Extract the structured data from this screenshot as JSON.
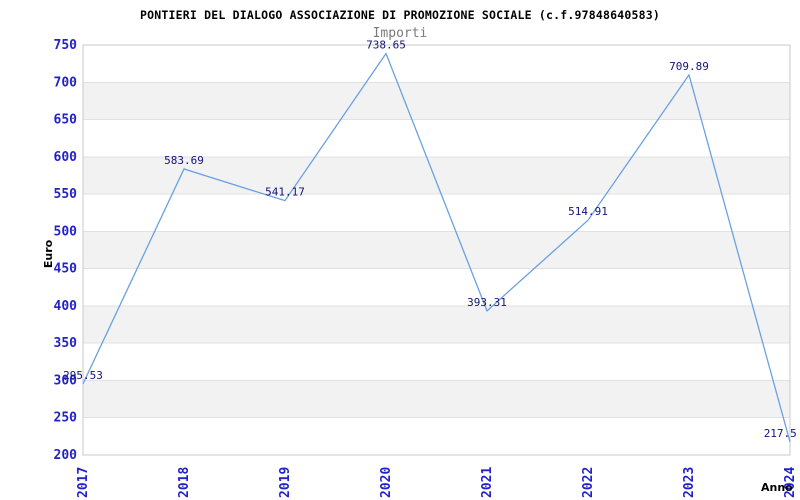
{
  "chart_data": {
    "type": "line",
    "title": "PONTIERI DEL DIALOGO ASSOCIAZIONE DI PROMOZIONE SOCIALE (c.f.97848640583)",
    "subtitle": "Importi",
    "xlabel": "Anno",
    "ylabel": "Euro",
    "categories": [
      "2017",
      "2018",
      "2019",
      "2020",
      "2021",
      "2022",
      "2023",
      "2024"
    ],
    "series": [
      {
        "name": "Importi",
        "values": [
          295.53,
          583.69,
          541.17,
          738.65,
          393.31,
          514.91,
          709.89,
          217.5
        ]
      }
    ],
    "ylim": [
      200,
      750
    ],
    "ytick_step": 50,
    "grid": "horizontal-lines-with-alternating-bands",
    "legend": "none",
    "data_labels": "shown-above-points",
    "style": {
      "line_color": "#6ba1e2",
      "tick_label_color": "#2222cc",
      "data_label_color": "#13137d",
      "band_color": "#f2f2f2",
      "gridline_color": "#e1e1e1",
      "frame_color": "#c9c9c9",
      "title_color": "#000000",
      "subtitle_color": "#7b7b7b",
      "axis_title_color": "#000000",
      "background_color": "#ffffff"
    }
  }
}
